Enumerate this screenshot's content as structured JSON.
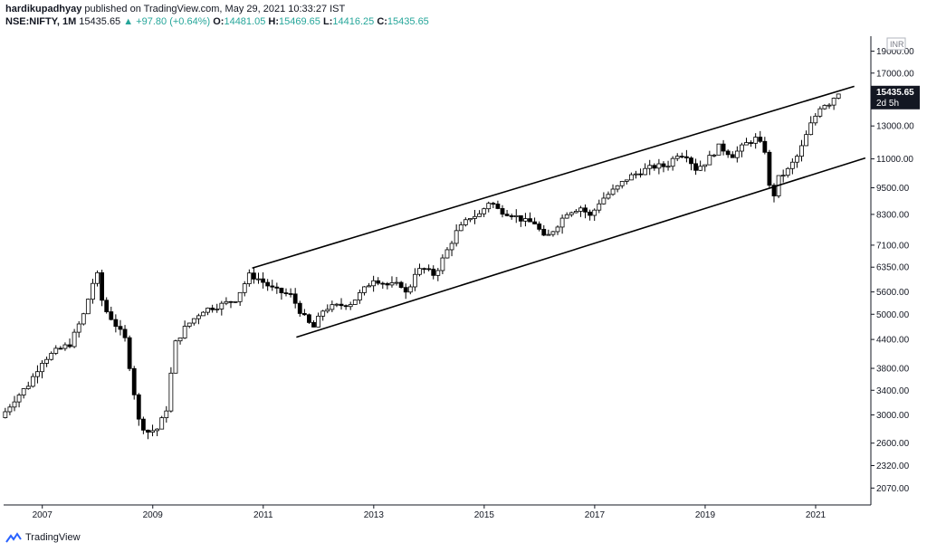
{
  "header": {
    "user": "hardikupadhyay",
    "published": "published on TradingView.com, May 29, 2021 10:33:27 IST",
    "symbol": "NSE:NIFTY, 1M",
    "price": "15435.65",
    "change_arrow": "▲",
    "change": "+97.80 (+0.64%)",
    "o_label": "O:",
    "o_value": "14481.05",
    "h_label": "H:",
    "h_value": "15469.65",
    "l_label": "L:",
    "l_value": "14416.25",
    "c_label": "C:",
    "c_value": "15435.65"
  },
  "price_tag": {
    "price": "15435.65",
    "countdown": "2d 5h",
    "currency": "INR"
  },
  "footer": {
    "brand": "TradingView"
  },
  "colors": {
    "up": "#26a69a",
    "text": "#131722",
    "axis": "#131722"
  },
  "chart_data": {
    "type": "candlestick",
    "scale": "log",
    "y_ticks": [
      19000,
      17000,
      15435.65,
      13000,
      11000,
      9500,
      8300,
      7100,
      6350,
      5600,
      5000,
      4400,
      3800,
      3400,
      3000,
      2600,
      2320,
      2070
    ],
    "y_tick_labels": [
      "19000.00",
      "17000.00",
      "15435.65",
      "13000.00",
      "11000.00",
      "9500.00",
      "8300.00",
      "7100.00",
      "6350.00",
      "5600.00",
      "5000.00",
      "4400.00",
      "3800.00",
      "3400.00",
      "3000.00",
      "2600.00",
      "2320.00",
      "2070.00"
    ],
    "x_ticks": [
      "2007",
      "2009",
      "2011",
      "2013",
      "2015",
      "2017",
      "2019",
      "2021"
    ],
    "ylim": [
      1900,
      20500
    ],
    "xlim": [
      2006.3,
      2022.0
    ],
    "channel_lines": [
      {
        "start": [
          2010.8,
          6320
        ],
        "end": [
          2021.7,
          15900
        ]
      },
      {
        "start": [
          2011.6,
          4450
        ],
        "end": [
          2021.9,
          11050
        ]
      }
    ],
    "anchors": [
      [
        2006.33,
        3050
      ],
      [
        2006.5,
        3250
      ],
      [
        2006.75,
        3500
      ],
      [
        2007.0,
        3950
      ],
      [
        2007.25,
        4150
      ],
      [
        2007.5,
        4300
      ],
      [
        2007.75,
        5000
      ],
      [
        2007.92,
        5900
      ],
      [
        2008.0,
        6100
      ],
      [
        2008.1,
        5200
      ],
      [
        2008.25,
        4900
      ],
      [
        2008.5,
        4400
      ],
      [
        2008.75,
        2900
      ],
      [
        2008.9,
        2750
      ],
      [
        2009.1,
        2800
      ],
      [
        2009.25,
        3100
      ],
      [
        2009.4,
        4300
      ],
      [
        2009.6,
        4700
      ],
      [
        2009.9,
        5100
      ],
      [
        2010.25,
        5250
      ],
      [
        2010.5,
        5400
      ],
      [
        2010.75,
        6100
      ],
      [
        2010.9,
        6000
      ],
      [
        2011.2,
        5650
      ],
      [
        2011.5,
        5500
      ],
      [
        2011.7,
        5000
      ],
      [
        2011.9,
        4650
      ],
      [
        2012.1,
        5150
      ],
      [
        2012.3,
        5200
      ],
      [
        2012.6,
        5300
      ],
      [
        2012.9,
        5800
      ],
      [
        2013.0,
        6000
      ],
      [
        2013.25,
        5800
      ],
      [
        2013.5,
        5800
      ],
      [
        2013.6,
        5500
      ],
      [
        2013.75,
        6200
      ],
      [
        2013.9,
        6300
      ],
      [
        2014.1,
        6100
      ],
      [
        2014.3,
        6800
      ],
      [
        2014.5,
        7600
      ],
      [
        2014.75,
        8200
      ],
      [
        2014.92,
        8300
      ],
      [
        2015.1,
        8900
      ],
      [
        2015.25,
        8500
      ],
      [
        2015.5,
        8300
      ],
      [
        2015.75,
        8000
      ],
      [
        2015.92,
        7950
      ],
      [
        2016.1,
        7300
      ],
      [
        2016.3,
        7800
      ],
      [
        2016.5,
        8400
      ],
      [
        2016.75,
        8600
      ],
      [
        2016.92,
        8200
      ],
      [
        2017.1,
        8900
      ],
      [
        2017.4,
        9500
      ],
      [
        2017.6,
        10000
      ],
      [
        2017.9,
        10400
      ],
      [
        2018.1,
        10600
      ],
      [
        2018.3,
        10600
      ],
      [
        2018.5,
        11300
      ],
      [
        2018.7,
        11200
      ],
      [
        2018.8,
        10400
      ],
      [
        2019.0,
        10800
      ],
      [
        2019.25,
        11700
      ],
      [
        2019.5,
        11200
      ],
      [
        2019.75,
        11900
      ],
      [
        2019.92,
        12200
      ],
      [
        2020.1,
        11400
      ],
      [
        2020.2,
        8600
      ],
      [
        2020.3,
        9900
      ],
      [
        2020.5,
        10400
      ],
      [
        2020.7,
        11300
      ],
      [
        2020.9,
        13000
      ],
      [
        2021.0,
        13700
      ],
      [
        2021.1,
        14500
      ],
      [
        2021.25,
        14600
      ],
      [
        2021.4,
        15435
      ]
    ]
  }
}
